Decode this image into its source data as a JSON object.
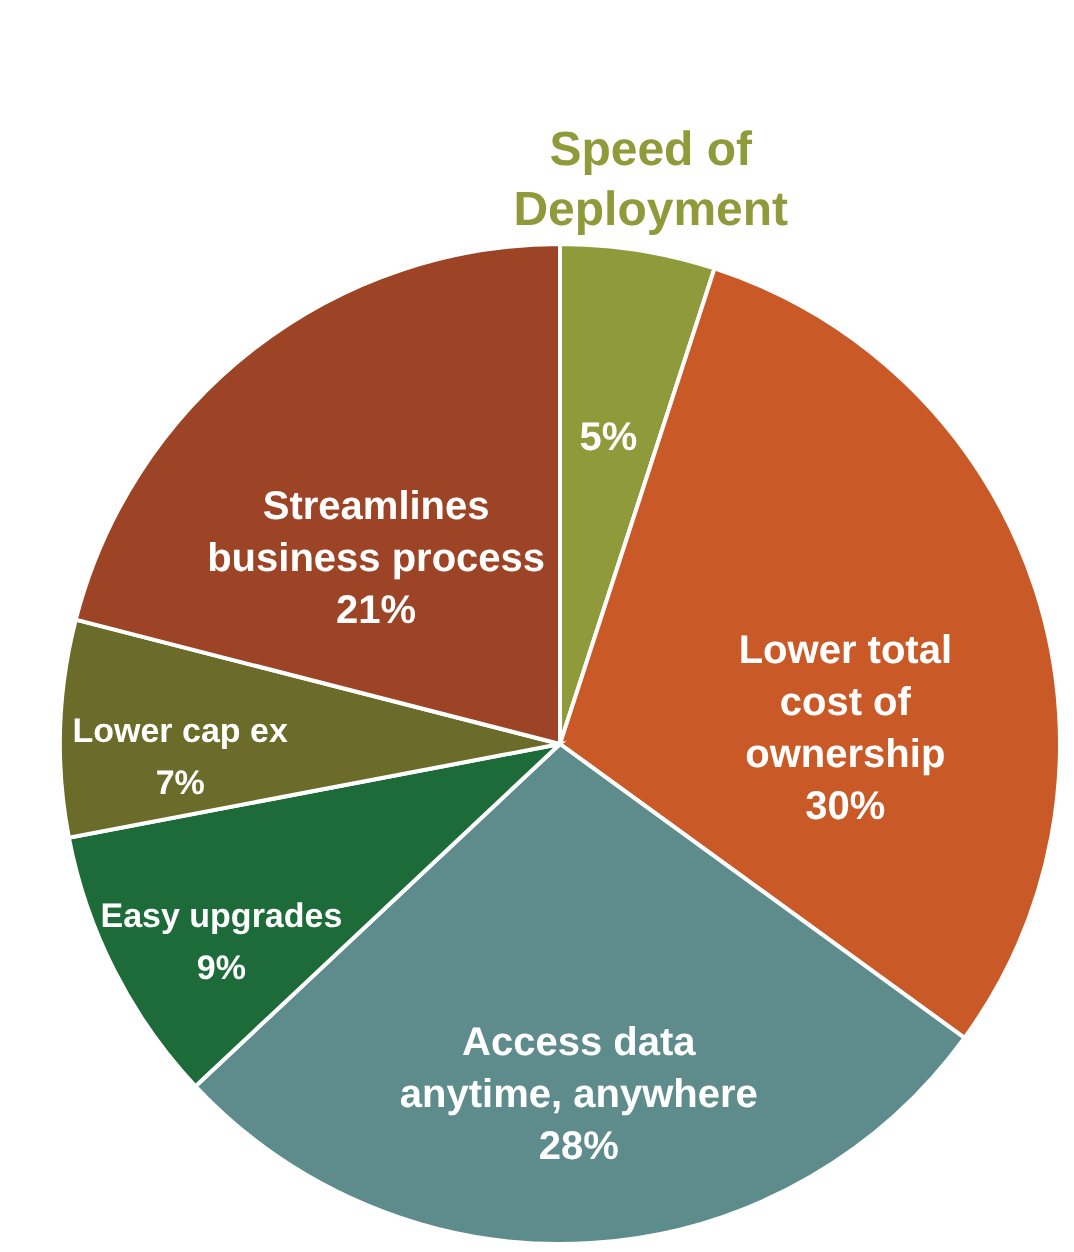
{
  "chart_data": {
    "type": "pie",
    "categories": [
      "Speed of Deployment",
      "Lower total cost of ownership",
      "Access data anytime, anywhere",
      "Easy upgrades",
      "Lower cap ex",
      "Streamlines business process"
    ],
    "values": [
      5,
      30,
      28,
      9,
      7,
      21
    ],
    "colors": [
      "#8f9a3a",
      "#c95a28",
      "#5e8c8c",
      "#1e6b3a",
      "#6b6b2a",
      "#9c4425"
    ],
    "value_labels": [
      "5%",
      "30%",
      "28%",
      "9%",
      "7%",
      "21%"
    ]
  }
}
